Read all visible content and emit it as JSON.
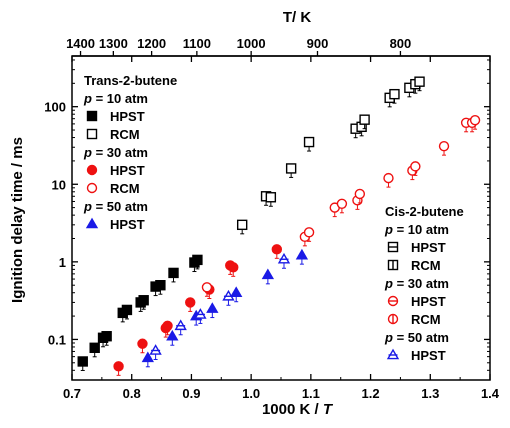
{
  "chart_data": {
    "type": "scatter",
    "xlabel": "1000 K / T",
    "ylabel": "Ignition delay time / ms",
    "top_xlabel": "T/ K",
    "xlim": [
      0.7,
      1.4
    ],
    "ylim": [
      0.03,
      450
    ],
    "y_scale": "log",
    "x_ticks": [
      0.7,
      0.8,
      0.9,
      1.0,
      1.1,
      1.2,
      1.3,
      1.4
    ],
    "x_tick_labels": [
      "0.7",
      "0.8",
      "0.9",
      "1.0",
      "1.1",
      "1.2",
      "1.3",
      "1.4"
    ],
    "y_ticks": [
      0.1,
      1,
      10,
      100
    ],
    "y_tick_labels": [
      "0.1",
      "1",
      "10",
      "100"
    ],
    "top_ticks": [
      1400,
      1300,
      1200,
      1100,
      1000,
      900,
      800
    ],
    "top_tick_labels": [
      "1400",
      "1300",
      "1200",
      "1100",
      "1000",
      "900",
      "800"
    ],
    "legend_left": {
      "title": "Trans-2-butene",
      "groups": [
        {
          "header": "p = 10 atm",
          "entries": [
            {
              "label": "HPST",
              "series": 0
            },
            {
              "label": "RCM",
              "series": 1
            }
          ]
        },
        {
          "header": "p = 30 atm",
          "entries": [
            {
              "label": "HPST",
              "series": 2
            },
            {
              "label": "RCM",
              "series": 3
            }
          ]
        },
        {
          "header": "p = 50 atm",
          "entries": [
            {
              "label": "HPST",
              "series": 4
            }
          ]
        }
      ]
    },
    "legend_right": {
      "title": "Cis-2-butene",
      "groups": [
        {
          "header": "p = 10 atm",
          "entries": [
            {
              "label": "HPST",
              "series": 5
            },
            {
              "label": "RCM",
              "series": 6
            }
          ]
        },
        {
          "header": "p = 30 atm",
          "entries": [
            {
              "label": "HPST",
              "series": 7
            },
            {
              "label": "RCM",
              "series": 8
            }
          ]
        },
        {
          "header": "p = 50 atm",
          "entries": [
            {
              "label": "HPST",
              "series": 9
            }
          ]
        }
      ]
    },
    "series": [
      {
        "color": "#000000",
        "marker": "square",
        "filled": true,
        "points": [
          [
            0.718,
            0.052
          ],
          [
            0.738,
            0.078
          ],
          [
            0.752,
            0.105
          ],
          [
            0.758,
            0.11
          ],
          [
            0.785,
            0.22
          ],
          [
            0.792,
            0.24
          ],
          [
            0.815,
            0.3
          ],
          [
            0.82,
            0.32
          ],
          [
            0.84,
            0.48
          ],
          [
            0.848,
            0.5
          ],
          [
            0.87,
            0.72
          ],
          [
            0.905,
            0.98
          ],
          [
            0.91,
            1.06
          ]
        ]
      },
      {
        "color": "#000000",
        "marker": "square",
        "filled": false,
        "points": [
          [
            0.985,
            3.0
          ],
          [
            1.025,
            7.0
          ],
          [
            1.033,
            6.8
          ],
          [
            1.067,
            16
          ],
          [
            1.097,
            35
          ],
          [
            1.175,
            52
          ],
          [
            1.185,
            55
          ],
          [
            1.19,
            68
          ],
          [
            1.232,
            130
          ],
          [
            1.24,
            145
          ],
          [
            1.265,
            175
          ],
          [
            1.275,
            195
          ],
          [
            1.282,
            210
          ]
        ]
      },
      {
        "color": "#ee1111",
        "marker": "circle",
        "filled": true,
        "points": [
          [
            0.778,
            0.045
          ],
          [
            0.818,
            0.088
          ],
          [
            0.857,
            0.14
          ],
          [
            0.86,
            0.15
          ],
          [
            0.898,
            0.3
          ],
          [
            0.93,
            0.44
          ],
          [
            0.965,
            0.9
          ],
          [
            0.97,
            0.85
          ],
          [
            1.043,
            1.45
          ]
        ]
      },
      {
        "color": "#ee1111",
        "marker": "circle",
        "filled": false,
        "points": [
          [
            0.926,
            0.47
          ],
          [
            1.09,
            2.1
          ],
          [
            1.097,
            2.4
          ],
          [
            1.14,
            5.0
          ],
          [
            1.152,
            5.6
          ],
          [
            1.178,
            6.2
          ],
          [
            1.182,
            7.5
          ],
          [
            1.23,
            12
          ],
          [
            1.27,
            15
          ],
          [
            1.275,
            17
          ],
          [
            1.323,
            31
          ],
          [
            1.36,
            62
          ],
          [
            1.37,
            62
          ],
          [
            1.375,
            67
          ]
        ]
      },
      {
        "color": "#1a1ae6",
        "marker": "triangle",
        "filled": true,
        "points": [
          [
            0.827,
            0.058
          ],
          [
            0.868,
            0.11
          ],
          [
            0.908,
            0.2
          ],
          [
            0.935,
            0.25
          ],
          [
            0.975,
            0.4
          ],
          [
            1.028,
            0.68
          ],
          [
            1.085,
            1.22
          ]
        ]
      },
      {
        "color": "#000000",
        "marker": "square-h",
        "filled": false,
        "points": []
      },
      {
        "color": "#000000",
        "marker": "square-v",
        "filled": false,
        "points": []
      },
      {
        "color": "#ee1111",
        "marker": "circle-h",
        "filled": false,
        "points": []
      },
      {
        "color": "#ee1111",
        "marker": "circle-v",
        "filled": false,
        "points": []
      },
      {
        "color": "#1a1ae6",
        "marker": "triangle-h",
        "filled": false,
        "points": [
          [
            0.84,
            0.072
          ],
          [
            0.882,
            0.15
          ],
          [
            0.915,
            0.21
          ],
          [
            0.962,
            0.36
          ],
          [
            1.055,
            1.08
          ]
        ]
      }
    ]
  }
}
